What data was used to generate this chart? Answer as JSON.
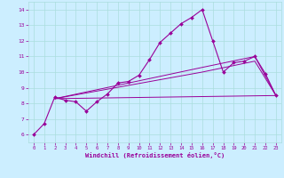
{
  "xlabel": "Windchill (Refroidissement éolien,°C)",
  "bg_color": "#cceeff",
  "grid_color": "#aadddd",
  "line_color": "#990099",
  "xlim": [
    -0.5,
    23.5
  ],
  "ylim": [
    5.5,
    14.5
  ],
  "xticks": [
    0,
    1,
    2,
    3,
    4,
    5,
    6,
    7,
    8,
    9,
    10,
    11,
    12,
    13,
    14,
    15,
    16,
    17,
    18,
    19,
    20,
    21,
    22,
    23
  ],
  "yticks": [
    6,
    7,
    8,
    9,
    10,
    11,
    12,
    13,
    14
  ],
  "line1_x": [
    0,
    1,
    2,
    3,
    4,
    5,
    6,
    7,
    8,
    9,
    10,
    11,
    12,
    13,
    14,
    15,
    16,
    17,
    18,
    19,
    20,
    21,
    22,
    23
  ],
  "line1_y": [
    6.0,
    6.7,
    8.4,
    8.2,
    8.1,
    7.5,
    8.1,
    8.6,
    9.3,
    9.4,
    9.8,
    10.8,
    11.9,
    12.5,
    13.1,
    13.5,
    14.0,
    12.0,
    10.0,
    10.6,
    10.7,
    11.0,
    9.9,
    8.5
  ],
  "line2_x": [
    2,
    23
  ],
  "line2_y": [
    8.3,
    8.5
  ],
  "line3_x": [
    2,
    16,
    21,
    23
  ],
  "line3_y": [
    8.3,
    10.0,
    10.7,
    8.5
  ],
  "line4_x": [
    2,
    16,
    21,
    23
  ],
  "line4_y": [
    8.3,
    10.3,
    11.0,
    8.5
  ]
}
